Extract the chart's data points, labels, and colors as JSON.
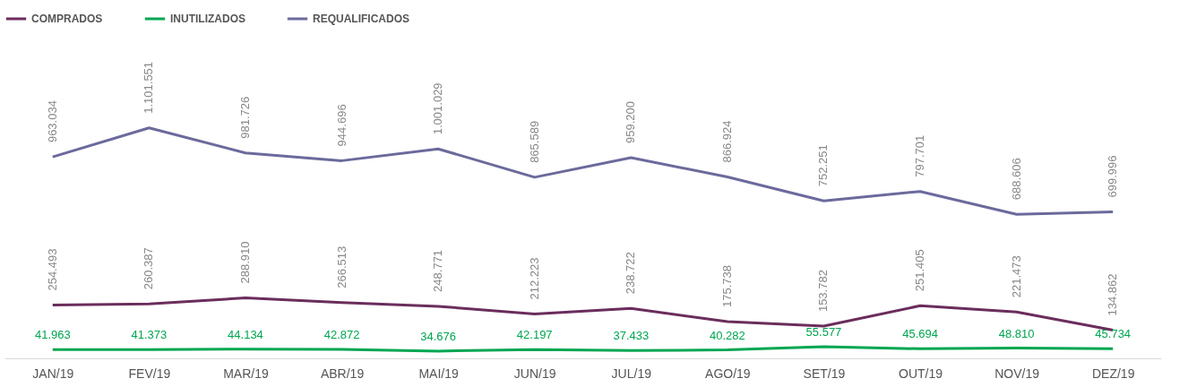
{
  "chart_data": {
    "type": "line",
    "categories": [
      "JAN/19",
      "FEV/19",
      "MAR/19",
      "ABR/19",
      "MAI/19",
      "JUN/19",
      "JUL/19",
      "AGO/19",
      "SET/19",
      "OUT/19",
      "NOV/19",
      "DEZ/19"
    ],
    "series": [
      {
        "name": "COMPRADOS",
        "color": "#6b2d5c",
        "values": [
          254493,
          260387,
          288910,
          266513,
          248771,
          212223,
          238722,
          175738,
          153782,
          251405,
          221473,
          134862
        ],
        "value_labels": [
          "254.493",
          "260.387",
          "288.910",
          "266.513",
          "248.771",
          "212.223",
          "238.722",
          "175.738",
          "153.782",
          "251.405",
          "221.473",
          "134.862"
        ]
      },
      {
        "name": "INUTILIZADOS",
        "color": "#00a651",
        "values": [
          41963,
          41373,
          44134,
          42872,
          34676,
          42197,
          37433,
          40282,
          55577,
          45694,
          48810,
          45734
        ],
        "value_labels": [
          "41.963",
          "41.373",
          "44.134",
          "42.872",
          "34.676",
          "42.197",
          "37.433",
          "40.282",
          "55.577",
          "45.694",
          "48.810",
          "45.734"
        ]
      },
      {
        "name": "REQUALIFICADOS",
        "color": "#6b6a9c",
        "values": [
          963034,
          1101551,
          981726,
          944696,
          1001029,
          865589,
          959200,
          866924,
          752251,
          797701,
          688606,
          699996
        ],
        "value_labels": [
          "963.034",
          "1.101.551",
          "981.726",
          "944.696",
          "1.001.029",
          "865.589",
          "959.200",
          "866.924",
          "752.251",
          "797.701",
          "688.606",
          "699.996"
        ]
      }
    ],
    "legend": "top",
    "grid": false,
    "marker": "none",
    "line_style": "solid"
  }
}
